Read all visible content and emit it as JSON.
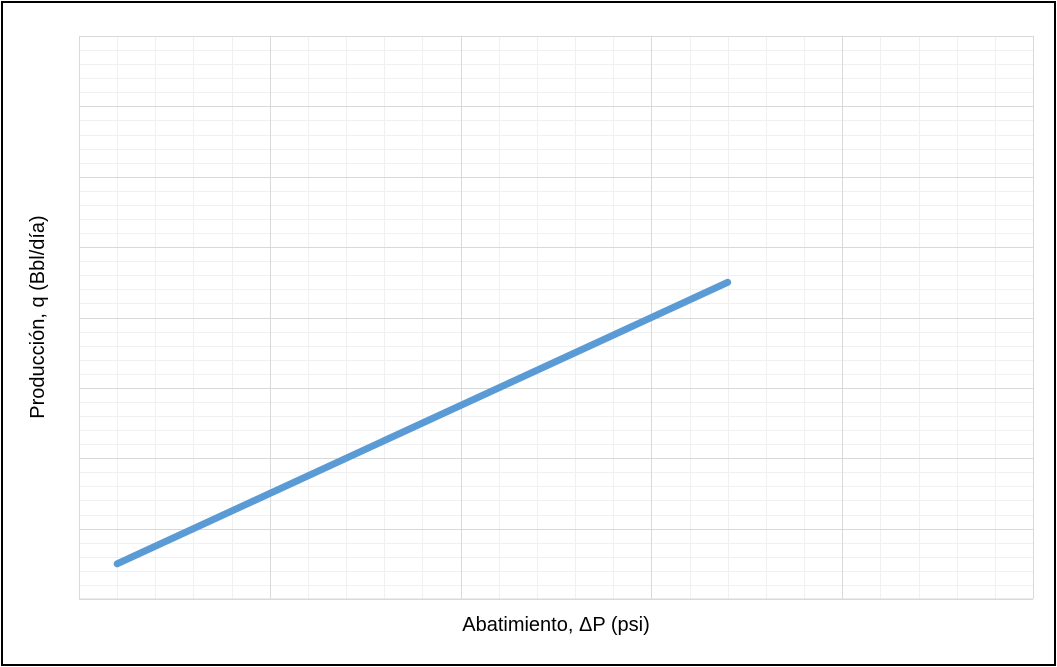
{
  "chart_data": {
    "type": "line",
    "title": "",
    "xlabel": "Abatimiento, ΔP (psi)",
    "ylabel": "Producción, q (Bbl/día)",
    "x_tick_labels_shown": false,
    "y_tick_labels_shown": false,
    "xlim": [
      0,
      25
    ],
    "ylim": [
      0,
      8
    ],
    "grid": {
      "major": true,
      "minor": true,
      "x_major_step": 5,
      "x_minor_step": 1,
      "y_major_step": 1,
      "y_minor_step": 0.2
    },
    "legend": "none",
    "series": [
      {
        "color": "#5B9BD5",
        "x": [
          1,
          17
        ],
        "y": [
          0.5,
          4.5
        ]
      }
    ]
  }
}
